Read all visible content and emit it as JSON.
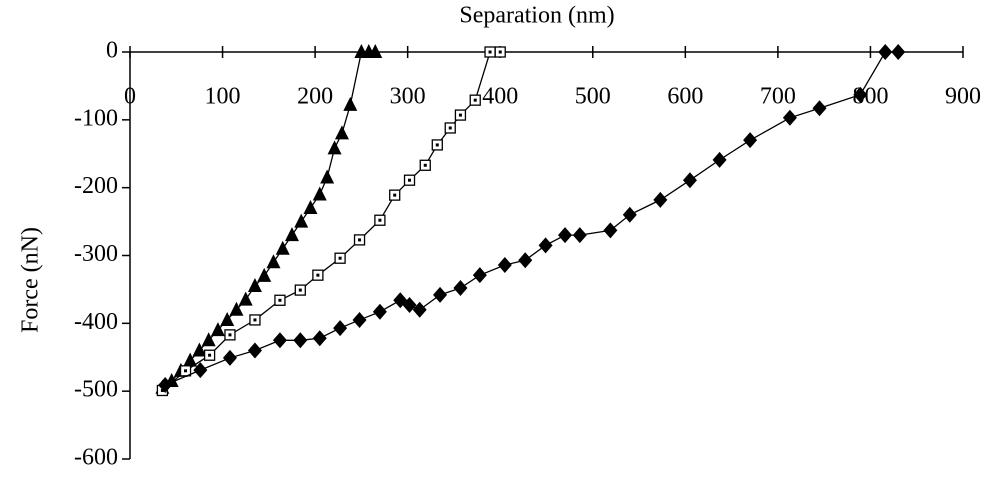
{
  "chart_data": {
    "type": "scatter-line",
    "title": "Separation (nm)",
    "y_label": "Force (nN)",
    "xlim": [
      0,
      900
    ],
    "xticks": [
      0,
      100,
      200,
      300,
      400,
      500,
      600,
      700,
      800,
      900
    ],
    "ylim": [
      -600,
      0
    ],
    "yticks": [
      0,
      -100,
      -200,
      -300,
      -400,
      -500,
      -600
    ],
    "series": [
      {
        "marker": "triangle",
        "color": "#000000",
        "x": [
          35,
          45,
          55,
          65,
          75,
          85,
          95,
          105,
          115,
          125,
          135,
          145,
          155,
          165,
          175,
          185,
          195,
          205,
          213,
          221,
          229,
          238,
          250,
          258,
          265
        ],
        "values": [
          -495,
          -485,
          -470,
          -455,
          -440,
          -425,
          -410,
          -395,
          -380,
          -365,
          -345,
          -330,
          -310,
          -290,
          -270,
          -250,
          -230,
          -210,
          -185,
          -142,
          -120,
          -78,
          0,
          0,
          0
        ]
      },
      {
        "marker": "square",
        "color": "#000000",
        "x": [
          35,
          60,
          86,
          108,
          135,
          162,
          184,
          203,
          227,
          248,
          270,
          286,
          302,
          319,
          332,
          346,
          357,
          373,
          389,
          400
        ],
        "values": [
          -499,
          -470,
          -447,
          -417,
          -395,
          -366,
          -351,
          -329,
          -304,
          -277,
          -248,
          -211,
          -189,
          -167,
          -137,
          -112,
          -93,
          -71,
          0,
          0
        ]
      },
      {
        "marker": "diamond",
        "color": "#000000",
        "x": [
          38,
          76,
          108,
          135,
          162,
          184,
          205,
          227,
          248,
          270,
          292,
          302,
          313,
          335,
          357,
          378,
          405,
          427,
          449,
          470,
          486,
          519,
          540,
          573,
          605,
          637,
          670,
          713,
          745,
          789,
          816,
          830
        ],
        "values": [
          -491,
          -469,
          -451,
          -440,
          -425,
          -425,
          -422,
          -407,
          -395,
          -383,
          -366,
          -373,
          -380,
          -358,
          -348,
          -329,
          -314,
          -307,
          -285,
          -270,
          -270,
          -263,
          -240,
          -218,
          -189,
          -159,
          -130,
          -97,
          -83,
          -63,
          0,
          0
        ]
      }
    ]
  }
}
